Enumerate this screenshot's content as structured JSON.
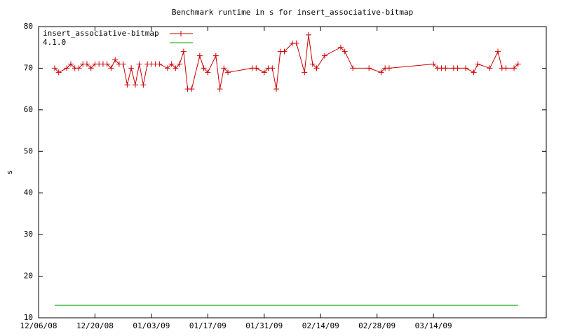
{
  "chart_data": {
    "type": "line",
    "title": "Benchmark runtime in s for insert_associative-bitmap",
    "y_label": "s",
    "xlim": [
      "2008-12-06",
      "2009-04-11"
    ],
    "xticks": [
      {
        "value": "2008-12-06",
        "label": "12/06/08"
      },
      {
        "value": "2008-12-20",
        "label": "12/20/08"
      },
      {
        "value": "2009-01-03",
        "label": "01/03/09"
      },
      {
        "value": "2009-01-17",
        "label": "01/17/09"
      },
      {
        "value": "2009-01-31",
        "label": "01/31/09"
      },
      {
        "value": "2009-02-14",
        "label": "02/14/09"
      },
      {
        "value": "2009-02-28",
        "label": "02/28/09"
      },
      {
        "value": "2009-03-14",
        "label": "03/14/09"
      }
    ],
    "ylim": [
      10,
      80
    ],
    "yticks": [
      10,
      20,
      30,
      40,
      50,
      60,
      70,
      80
    ],
    "legend": "top-left",
    "series": [
      {
        "name": "insert_associative-bitmap",
        "color": "#cc0000",
        "marker": "+",
        "x": [
          "2008-12-10",
          "2008-12-11",
          "2008-12-13",
          "2008-12-14",
          "2008-12-15",
          "2008-12-16",
          "2008-12-17",
          "2008-12-18",
          "2008-12-19",
          "2008-12-20",
          "2008-12-21",
          "2008-12-22",
          "2008-12-23",
          "2008-12-24",
          "2008-12-25",
          "2008-12-26",
          "2008-12-27",
          "2008-12-28",
          "2008-12-29",
          "2008-12-30",
          "2008-12-31",
          "2009-01-01",
          "2009-01-02",
          "2009-01-03",
          "2009-01-04",
          "2009-01-05",
          "2009-01-07",
          "2009-01-08",
          "2009-01-09",
          "2009-01-10",
          "2009-01-11",
          "2009-01-12",
          "2009-01-13",
          "2009-01-15",
          "2009-01-16",
          "2009-01-17",
          "2009-01-19",
          "2009-01-20",
          "2009-01-21",
          "2009-01-22",
          "2009-01-28",
          "2009-01-29",
          "2009-01-31",
          "2009-02-01",
          "2009-02-02",
          "2009-02-03",
          "2009-02-04",
          "2009-02-05",
          "2009-02-07",
          "2009-02-08",
          "2009-02-10",
          "2009-02-11",
          "2009-02-12",
          "2009-02-13",
          "2009-02-15",
          "2009-02-19",
          "2009-02-20",
          "2009-02-22",
          "2009-02-26",
          "2009-03-01",
          "2009-03-02",
          "2009-03-03",
          "2009-03-14",
          "2009-03-15",
          "2009-03-16",
          "2009-03-17",
          "2009-03-19",
          "2009-03-20",
          "2009-03-22",
          "2009-03-24",
          "2009-03-25",
          "2009-03-28",
          "2009-03-30",
          "2009-03-31",
          "2009-04-01",
          "2009-04-03",
          "2009-04-04"
        ],
        "values": [
          70,
          69,
          70,
          71,
          70,
          70,
          71,
          71,
          70,
          71,
          71,
          71,
          71,
          70,
          72,
          71,
          71,
          66,
          70,
          66,
          71,
          66,
          71,
          71,
          71,
          71,
          70,
          71,
          70,
          71,
          74,
          65,
          65,
          73,
          70,
          69,
          73,
          65,
          70,
          69,
          70,
          70,
          69,
          70,
          70,
          65,
          74,
          74,
          76,
          76,
          69,
          78,
          71,
          70,
          73,
          75,
          74,
          70,
          70,
          69,
          70,
          70,
          71,
          70,
          70,
          70,
          70,
          70,
          70,
          69,
          71,
          70,
          74,
          70,
          70,
          70,
          71
        ]
      },
      {
        "name": "4.1.0",
        "color": "#00aa00",
        "x": [
          "2008-12-10",
          "2009-04-04"
        ],
        "values": [
          13,
          13
        ]
      }
    ]
  }
}
